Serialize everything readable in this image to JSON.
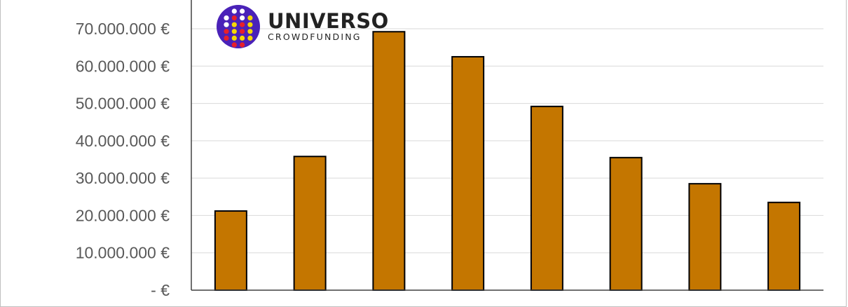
{
  "logo": {
    "name": "UNIVERSO",
    "subtitle": "CROWDFUNDING",
    "brand_color": "#4a22b8"
  },
  "chart_data": {
    "type": "bar",
    "title": "",
    "xlabel": "",
    "ylabel": "",
    "categories": [
      "",
      "",
      "",
      "",
      "",
      "",
      "",
      ""
    ],
    "values": [
      21200000,
      35800000,
      69200000,
      62500000,
      49200000,
      35500000,
      28500000,
      23500000
    ],
    "ylim": [
      0,
      70000000
    ],
    "yticks": [
      0,
      10000000,
      20000000,
      30000000,
      40000000,
      50000000,
      60000000,
      70000000
    ],
    "ytick_labels": [
      "-   €",
      "10.000.000 €",
      "20.000.000 €",
      "30.000.000 €",
      "40.000.000 €",
      "50.000.000 €",
      "60.000.000 €",
      "70.000.000 €"
    ],
    "grid": true,
    "bar_color": "#c47600",
    "bar_edge_color": "#000000"
  }
}
